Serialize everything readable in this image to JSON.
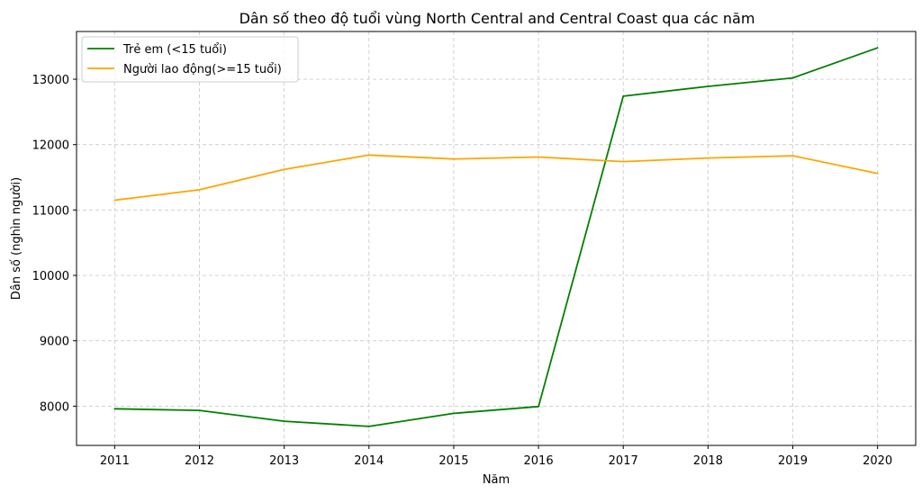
{
  "chart_data": {
    "type": "line",
    "title": "Dân số theo độ tuổi vùng North Central and Central Coast qua các năm",
    "xlabel": "Năm",
    "ylabel": "Dân số (nghìn người)",
    "x": [
      2011,
      2012,
      2013,
      2014,
      2015,
      2016,
      2017,
      2018,
      2019,
      2020
    ],
    "x_tick_labels": [
      "2011",
      "2012",
      "2013",
      "2014",
      "2015",
      "2016",
      "2017",
      "2018",
      "2019",
      "2020"
    ],
    "y_ticks": [
      8000,
      9000,
      10000,
      11000,
      12000,
      13000
    ],
    "y_tick_labels": [
      "8000",
      "9000",
      "10000",
      "11000",
      "12000",
      "13000"
    ],
    "xlim": [
      2010.55,
      2020.45
    ],
    "ylim": [
      7400,
      13730
    ],
    "grid": true,
    "legend_position": "top-left",
    "series": [
      {
        "name": "Trẻ em (<15 tuổi)",
        "color": "#008000",
        "values": [
          7960,
          7935,
          7770,
          7690,
          7890,
          7995,
          12740,
          12890,
          13020,
          13480
        ]
      },
      {
        "name": "Người lao động(>=15 tuổi)",
        "color": "#FFA500",
        "values": [
          11150,
          11310,
          11620,
          11840,
          11780,
          11810,
          11740,
          11795,
          11830,
          11560
        ]
      }
    ]
  }
}
